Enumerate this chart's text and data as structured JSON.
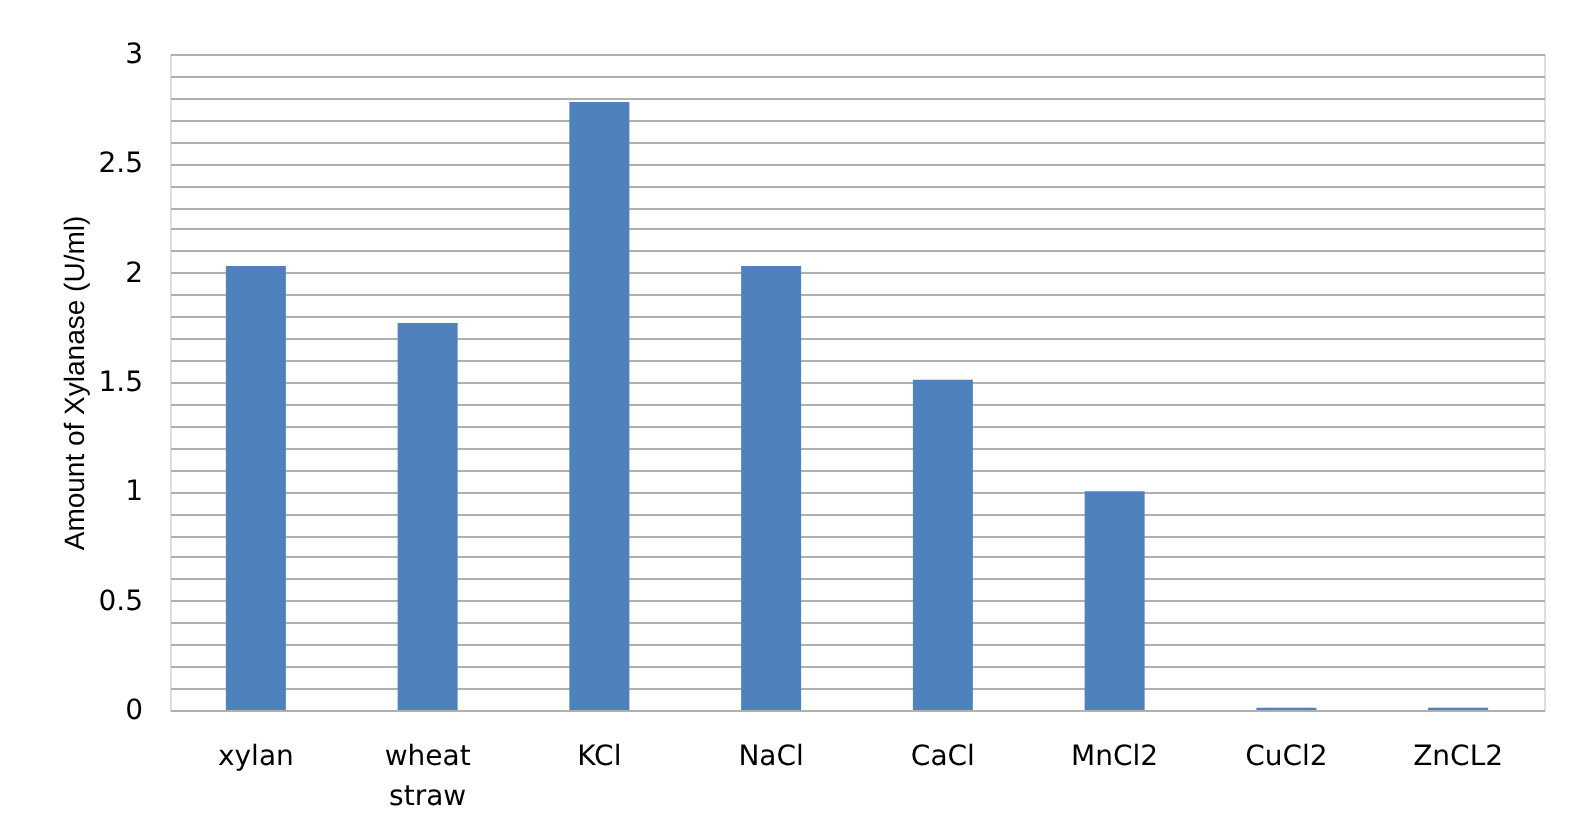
{
  "chart_data": {
    "type": "bar",
    "ylabel": "Amount of Xylanase (U/ml)",
    "categories": [
      "xylan",
      "wheat straw",
      "KCl",
      "NaCl",
      "CaCl",
      "MnCl2",
      "CuCl2",
      "ZnCL2"
    ],
    "values": [
      2.03,
      1.77,
      2.78,
      2.03,
      1.51,
      1.0,
      0.01,
      0.01
    ],
    "color": "#4f81bd",
    "ylim": [
      0,
      3
    ],
    "yticks": [
      0,
      {
        "value": 0.1,
        "label": null
      },
      {
        "value": 0.2,
        "label": null
      },
      {
        "value": 0.3,
        "label": null
      },
      {
        "value": 0.4,
        "label": null
      },
      0.5,
      {
        "value": 0.6,
        "label": null
      },
      {
        "value": 0.7,
        "label": null
      },
      {
        "value": 0.8,
        "label": null
      },
      {
        "value": 0.9,
        "label": null
      },
      1,
      {
        "value": 1.1,
        "label": null
      },
      {
        "value": 1.2,
        "label": null
      },
      {
        "value": 1.3,
        "label": null
      },
      {
        "value": 1.4,
        "label": null
      },
      1.5,
      {
        "value": 1.6,
        "label": null
      },
      {
        "value": 1.7,
        "label": null
      },
      {
        "value": 1.8,
        "label": null
      },
      {
        "value": 1.9,
        "label": null
      },
      2,
      {
        "value": 2.1,
        "label": null
      },
      {
        "value": 2.2,
        "label": null
      },
      {
        "value": 2.3,
        "label": null
      },
      {
        "value": 2.4,
        "label": null
      },
      2.5,
      {
        "value": 2.6,
        "label": null
      },
      {
        "value": 2.7,
        "label": null
      },
      {
        "value": 2.8,
        "label": null
      },
      {
        "value": 2.9,
        "label": null
      },
      3
    ],
    "grid": "y"
  }
}
